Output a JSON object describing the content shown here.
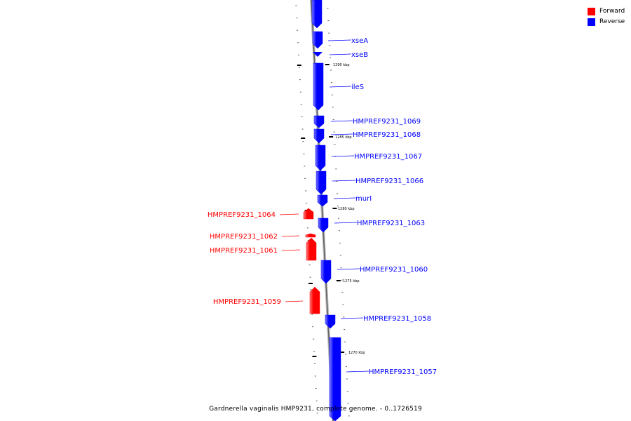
{
  "legend": {
    "forward": {
      "label": "Forward",
      "color": "#ff0000"
    },
    "reverse": {
      "label": "Reverse",
      "color": "#0000ff"
    }
  },
  "caption": "Gardnerella vaginalis HMP9231, complete genome. - 0..1726519",
  "ticks": [
    "1290 kbp",
    "1285 kbp",
    "1280 kbp",
    "1275 kbp",
    "1270 kbp"
  ],
  "genes": [
    {
      "name": "xseA",
      "strand": "reverse"
    },
    {
      "name": "xseB",
      "strand": "reverse"
    },
    {
      "name": "ileS",
      "strand": "reverse"
    },
    {
      "name": "HMPREF9231_1069",
      "strand": "reverse"
    },
    {
      "name": "HMPREF9231_1068",
      "strand": "reverse"
    },
    {
      "name": "HMPREF9231_1067",
      "strand": "reverse"
    },
    {
      "name": "HMPREF9231_1066",
      "strand": "reverse"
    },
    {
      "name": "murI",
      "strand": "reverse"
    },
    {
      "name": "HMPREF9231_1064",
      "strand": "forward"
    },
    {
      "name": "HMPREF9231_1063",
      "strand": "reverse"
    },
    {
      "name": "HMPREF9231_1062",
      "strand": "forward"
    },
    {
      "name": "HMPREF9231_1061",
      "strand": "forward"
    },
    {
      "name": "HMPREF9231_1060",
      "strand": "reverse"
    },
    {
      "name": "HMPREF9231_1059",
      "strand": "forward"
    },
    {
      "name": "HMPREF9231_1058",
      "strand": "reverse"
    },
    {
      "name": "HMPREF9231_1057",
      "strand": "reverse"
    }
  ]
}
